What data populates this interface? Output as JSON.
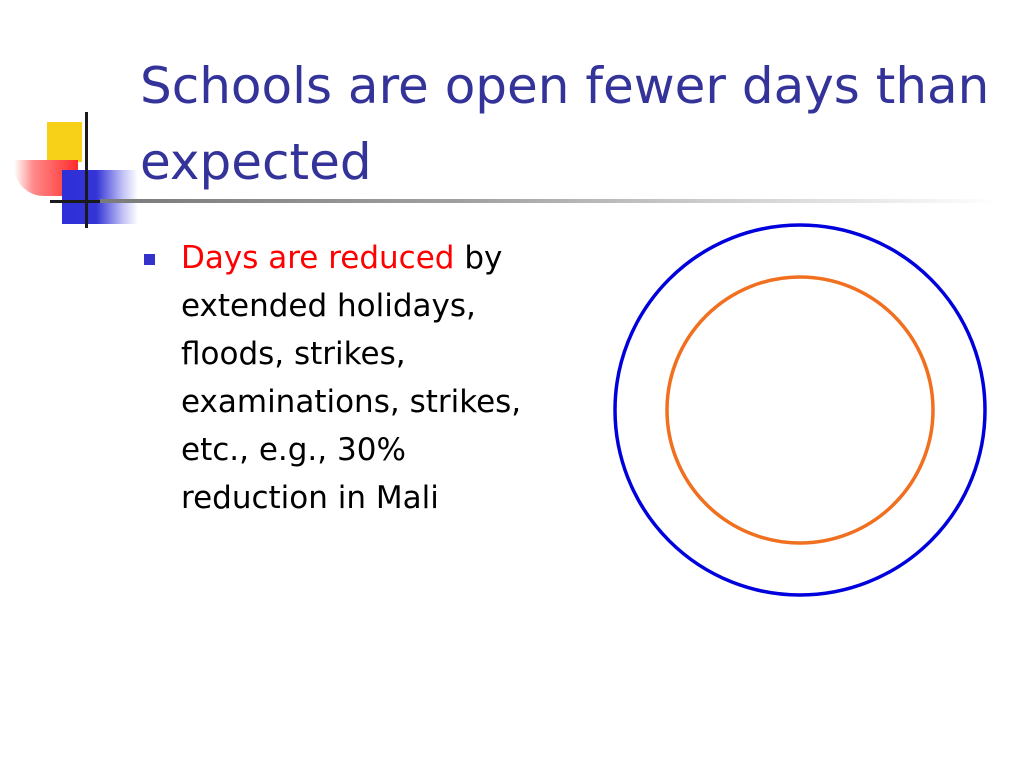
{
  "slide": {
    "title": "Schools are open fewer days than expected",
    "bullet": {
      "highlight": "Days are reduced",
      "rest": " by extended holidays, floods, strikes, examinations, strikes, etc., e.g., 30% reduction in Mali"
    }
  },
  "colors": {
    "title": "#333399",
    "highlight": "#ff0000",
    "bullet_marker": "#3333cc",
    "outer_circle": "#0000dd",
    "inner_circle": "#f07020"
  }
}
